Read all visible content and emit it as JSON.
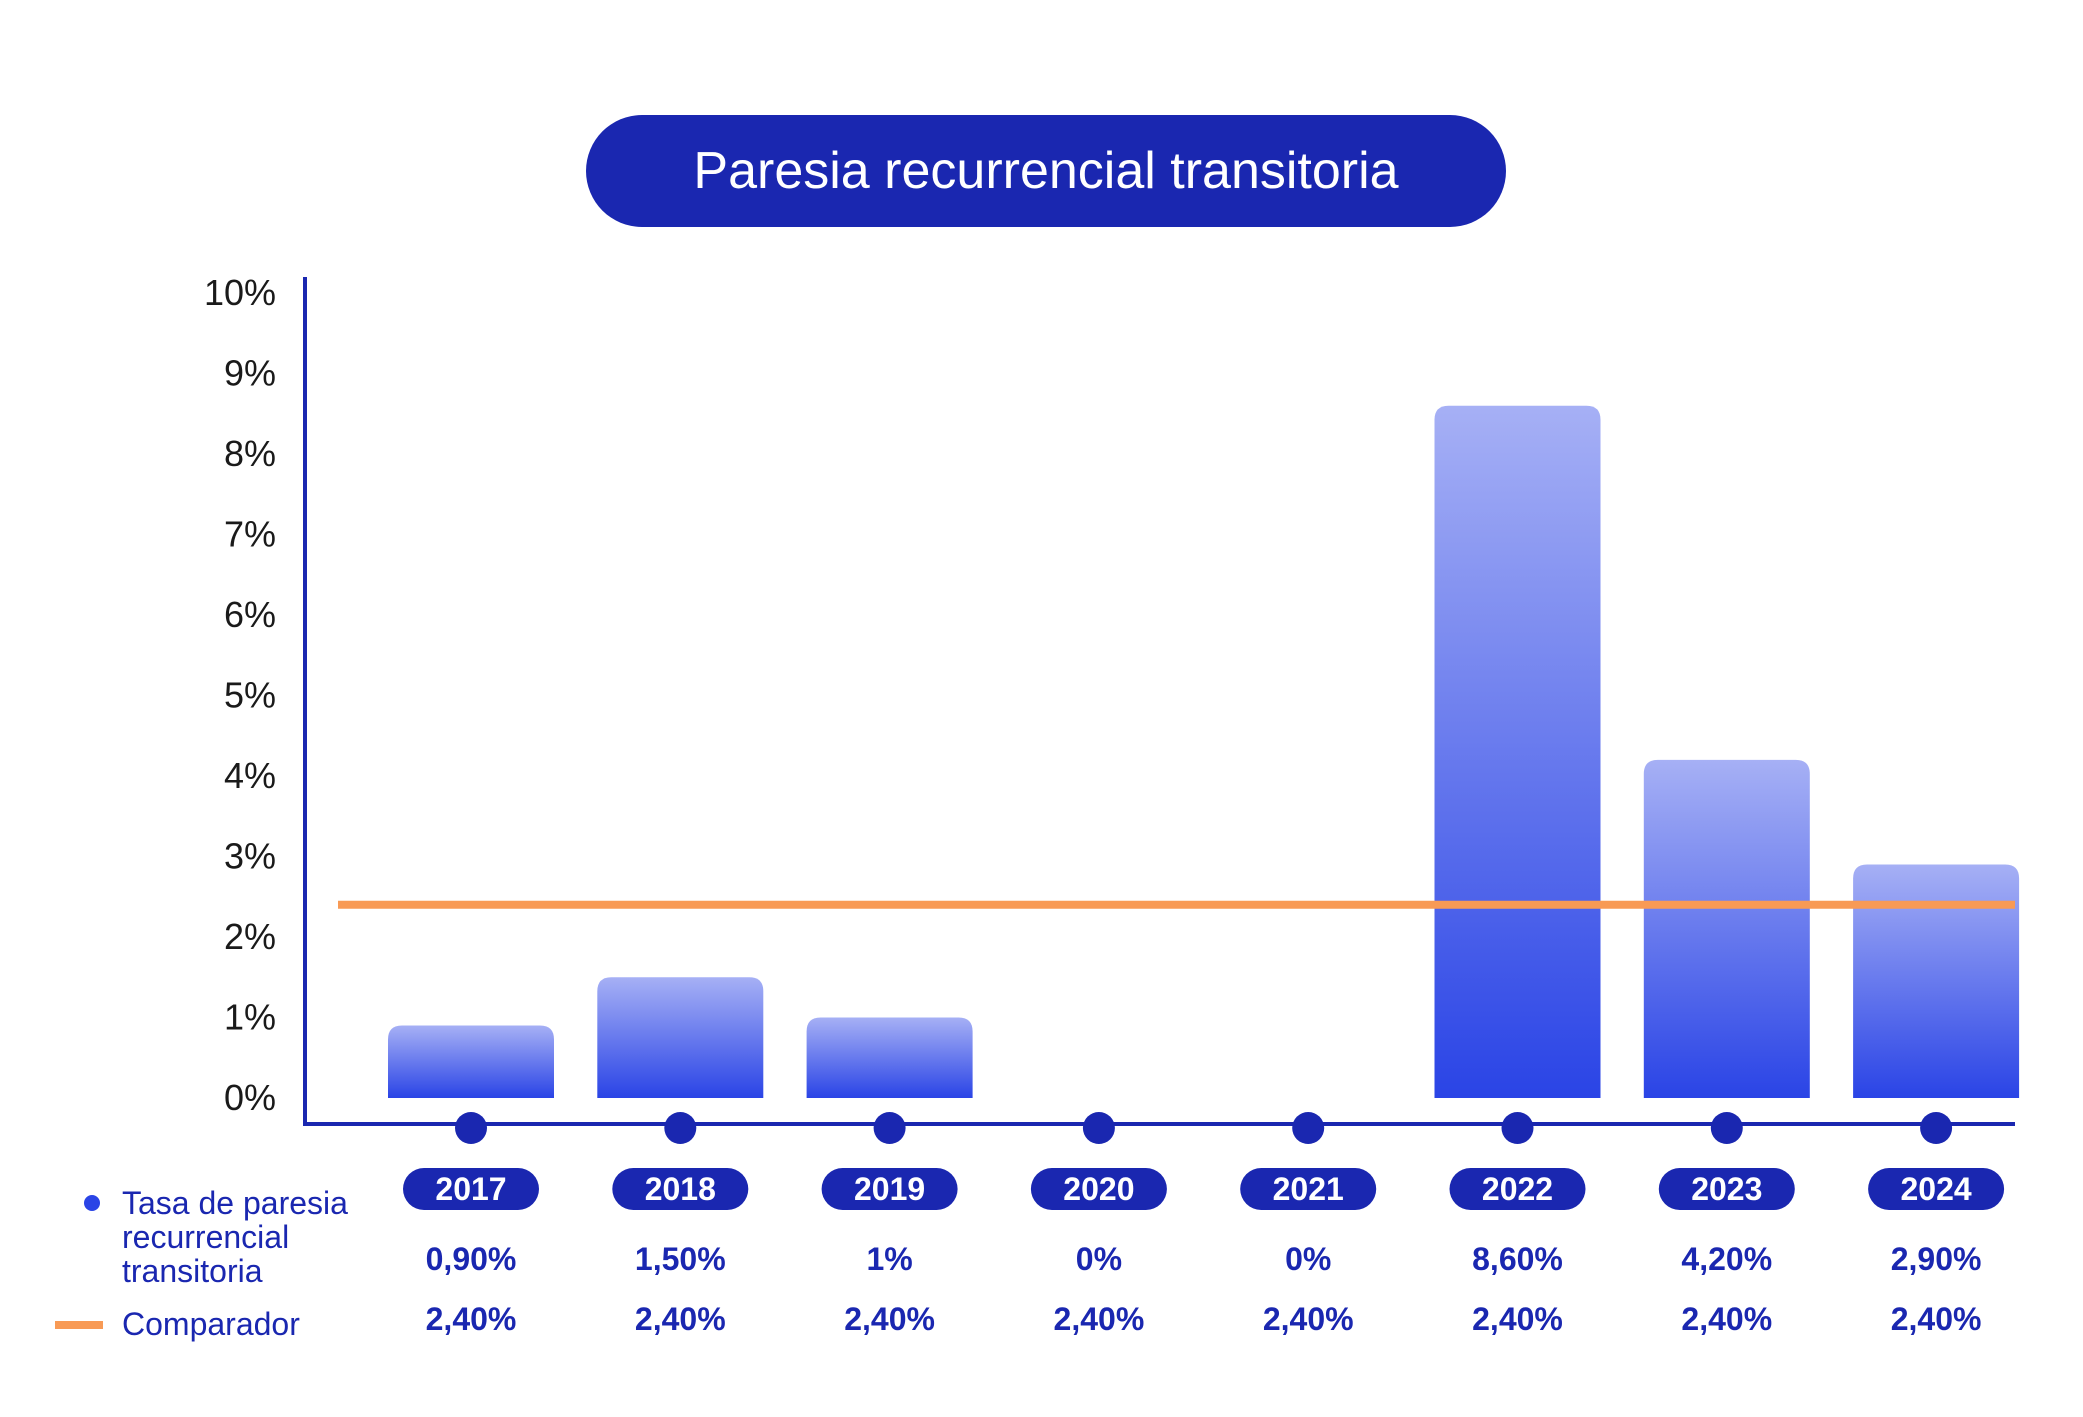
{
  "chart_data": {
    "type": "bar",
    "title": "Paresia recurrencial transitoria",
    "categories": [
      "2017",
      "2018",
      "2019",
      "2020",
      "2021",
      "2022",
      "2023",
      "2024"
    ],
    "series": [
      {
        "name": "Tasa de paresia recurrencial transitoria",
        "values": [
          0.9,
          1.5,
          1.0,
          0,
          0,
          8.6,
          4.2,
          2.9
        ],
        "labels": [
          "0,90%",
          "1,50%",
          "1%",
          "0%",
          "0%",
          "8,60%",
          "4,20%",
          "2,90%"
        ],
        "color": "#2a44e6"
      },
      {
        "name": "Comparador",
        "type": "line",
        "values": [
          2.4,
          2.4,
          2.4,
          2.4,
          2.4,
          2.4,
          2.4,
          2.4
        ],
        "labels": [
          "2,40%",
          "2,40%",
          "2,40%",
          "2,40%",
          "2,40%",
          "2,40%",
          "2,40%",
          "2,40%"
        ],
        "color": "#f89a55"
      }
    ],
    "yticks": [
      "0%",
      "1%",
      "2%",
      "3%",
      "4%",
      "5%",
      "6%",
      "7%",
      "8%",
      "9%",
      "10%"
    ],
    "ylim": [
      0,
      10
    ],
    "grid": false,
    "legend_position": "bottom-left"
  },
  "colors": {
    "accent": "#1a27b0",
    "bar_top": "#a6b0f5",
    "bar_bottom": "#2a44e6",
    "comparator": "#f89a55"
  },
  "legend": {
    "series_label_lines": [
      "Tasa de paresia",
      "recurrencial",
      "transitoria"
    ],
    "comparator_label": "Comparador"
  }
}
